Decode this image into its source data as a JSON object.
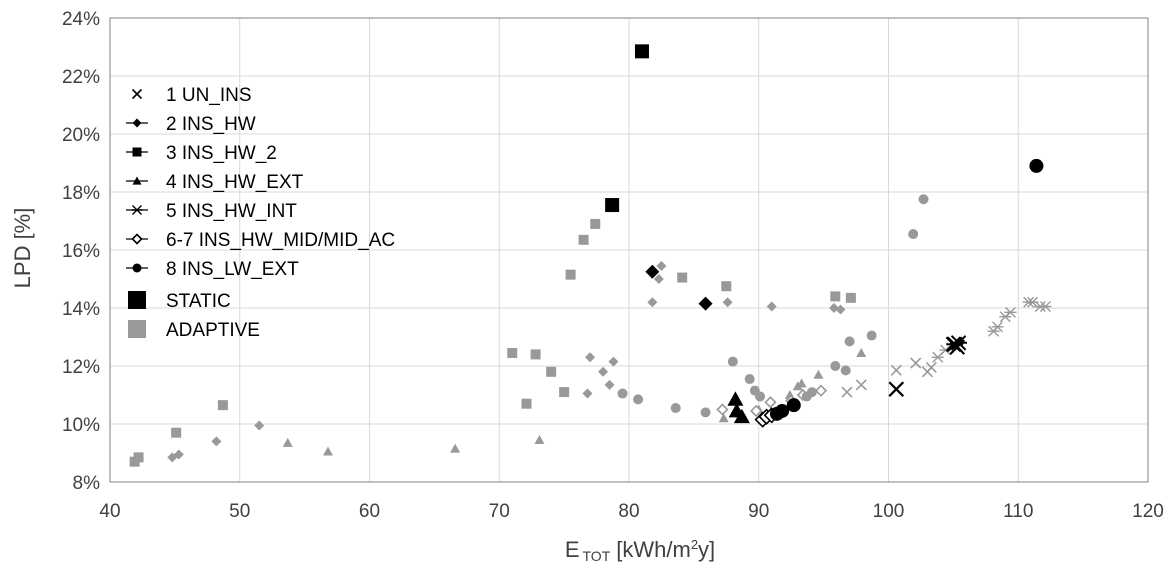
{
  "chart_data": {
    "type": "scatter",
    "title": "",
    "xlabel": "E",
    "xlabel_sub": "TOT",
    "xlabel_unit_before": "[kWh/m",
    "xlabel_unit_sup": "2",
    "xlabel_unit_after": "y]",
    "ylabel": "LPD [%]",
    "xlim": [
      40,
      120
    ],
    "ylim": [
      8,
      24
    ],
    "xticks": [
      40,
      50,
      60,
      70,
      80,
      90,
      100,
      110,
      120
    ],
    "yticks": [
      8,
      10,
      12,
      14,
      16,
      18,
      20,
      22,
      24
    ],
    "ytick_suffix": "%",
    "grid": true,
    "legend_position": "upper-left",
    "colors": {
      "static": "#000000",
      "adaptive": "#999999",
      "grid": "#d9d9d9",
      "axis": "#808080"
    },
    "legend": [
      {
        "label": "1 UN_INS",
        "marker": "x",
        "line": false,
        "color": "#000000"
      },
      {
        "label": "2 INS_HW",
        "marker": "diamond",
        "line": true,
        "color": "#000000"
      },
      {
        "label": "3 INS_HW_2",
        "marker": "square",
        "line": true,
        "color": "#000000"
      },
      {
        "label": "4 INS_HW_EXT",
        "marker": "triangle",
        "line": true,
        "color": "#000000"
      },
      {
        "label": "5 INS_HW_INT",
        "marker": "star",
        "line": true,
        "color": "#000000"
      },
      {
        "label": "6-7 INS_HW_MID/MID_AC",
        "marker": "diamond-open",
        "line": true,
        "color": "#000000"
      },
      {
        "label": "8 INS_LW_EXT",
        "marker": "circle",
        "line": true,
        "color": "#000000"
      },
      {
        "label": "STATIC",
        "marker": "bigsquare",
        "line": false,
        "color": "#000000"
      },
      {
        "label": "ADAPTIVE",
        "marker": "bigsquare",
        "line": false,
        "color": "#999999"
      }
    ],
    "series": [
      {
        "name": "1 UN_INS",
        "marker": "x",
        "color": "#000000",
        "size": 7,
        "points": [
          [
            100.6,
            11.2
          ],
          [
            105.0,
            12.75
          ],
          [
            105.3,
            12.65
          ]
        ]
      },
      {
        "name": "1 UN_INS",
        "marker": "x",
        "color": "#999999",
        "size": 5,
        "points": [
          [
            96.8,
            11.1
          ],
          [
            97.9,
            11.35
          ],
          [
            100.6,
            11.85
          ],
          [
            102.1,
            12.1
          ],
          [
            103.0,
            11.8
          ],
          [
            103.3,
            11.95
          ]
        ]
      },
      {
        "name": "2 INS_HW",
        "marker": "diamond",
        "color": "#000000",
        "size": 7,
        "points": [
          [
            81.8,
            15.25
          ],
          [
            85.9,
            14.15
          ]
        ]
      },
      {
        "name": "2 INS_HW",
        "marker": "diamond",
        "color": "#999999",
        "size": 5,
        "points": [
          [
            44.8,
            8.85
          ],
          [
            45.3,
            8.95
          ],
          [
            48.2,
            9.4
          ],
          [
            51.5,
            9.95
          ],
          [
            76.8,
            11.05
          ],
          [
            77.0,
            12.3
          ],
          [
            78.0,
            11.8
          ],
          [
            78.5,
            11.35
          ],
          [
            78.8,
            12.15
          ],
          [
            81.8,
            14.2
          ],
          [
            82.3,
            15.0
          ],
          [
            82.5,
            15.45
          ],
          [
            87.6,
            14.2
          ],
          [
            91.0,
            14.05
          ],
          [
            95.8,
            14.0
          ],
          [
            96.3,
            13.95
          ]
        ]
      },
      {
        "name": "3 INS_HW_2",
        "marker": "square",
        "color": "#000000",
        "size": 7,
        "points": [
          [
            81.0,
            22.85
          ],
          [
            78.7,
            17.55
          ]
        ]
      },
      {
        "name": "3 INS_HW_2",
        "marker": "square",
        "color": "#999999",
        "size": 5,
        "points": [
          [
            41.9,
            8.7
          ],
          [
            42.2,
            8.85
          ],
          [
            45.1,
            9.7
          ],
          [
            48.7,
            10.65
          ],
          [
            71.0,
            12.45
          ],
          [
            72.1,
            10.7
          ],
          [
            72.8,
            12.4
          ],
          [
            74.0,
            11.8
          ],
          [
            75.0,
            11.1
          ],
          [
            75.5,
            15.15
          ],
          [
            76.5,
            16.35
          ],
          [
            77.4,
            16.9
          ],
          [
            84.1,
            15.05
          ],
          [
            87.5,
            14.75
          ],
          [
            95.9,
            14.4
          ],
          [
            97.1,
            14.35
          ]
        ]
      },
      {
        "name": "4 INS_HW_EXT",
        "marker": "triangle",
        "color": "#000000",
        "size": 8,
        "points": [
          [
            88.2,
            10.85
          ],
          [
            88.3,
            10.45
          ],
          [
            88.7,
            10.25
          ]
        ]
      },
      {
        "name": "4 INS_HW_EXT",
        "marker": "triangle",
        "color": "#999999",
        "size": 5,
        "points": [
          [
            53.7,
            9.35
          ],
          [
            56.8,
            9.05
          ],
          [
            66.6,
            9.15
          ],
          [
            73.1,
            9.45
          ],
          [
            87.3,
            10.2
          ],
          [
            90.0,
            10.5
          ],
          [
            92.4,
            11.0
          ],
          [
            93.0,
            11.3
          ],
          [
            93.3,
            11.4
          ],
          [
            94.6,
            11.7
          ],
          [
            97.9,
            12.45
          ]
        ]
      },
      {
        "name": "5 INS_HW_INT",
        "marker": "star",
        "color": "#000000",
        "size": 7,
        "points": [
          [
            105.1,
            12.75
          ],
          [
            105.4,
            12.8
          ]
        ]
      },
      {
        "name": "5 INS_HW_INT",
        "marker": "star",
        "color": "#999999",
        "size": 5,
        "points": [
          [
            103.8,
            12.3
          ],
          [
            104.4,
            12.55
          ],
          [
            108.1,
            13.2
          ],
          [
            108.4,
            13.35
          ],
          [
            109.0,
            13.7
          ],
          [
            109.4,
            13.85
          ],
          [
            110.8,
            14.2
          ],
          [
            111.1,
            14.2
          ],
          [
            111.7,
            14.05
          ],
          [
            112.1,
            14.05
          ]
        ]
      },
      {
        "name": "6-7 INS_HW_MID/MID_AC",
        "marker": "diamond-open",
        "color": "#000000",
        "size": 7,
        "points": [
          [
            90.3,
            10.15
          ],
          [
            90.6,
            10.25
          ],
          [
            91.0,
            10.3
          ]
        ]
      },
      {
        "name": "6-7 INS_HW_MID/MID_AC",
        "marker": "diamond-open",
        "color": "#999999",
        "size": 5,
        "points": [
          [
            87.2,
            10.5
          ],
          [
            89.8,
            10.45
          ],
          [
            90.9,
            10.75
          ],
          [
            92.5,
            10.8
          ],
          [
            93.4,
            11.0
          ],
          [
            94.8,
            11.15
          ]
        ]
      },
      {
        "name": "8 INS_LW_EXT",
        "marker": "circle",
        "color": "#000000",
        "size": 7,
        "points": [
          [
            91.4,
            10.35
          ],
          [
            91.8,
            10.45
          ],
          [
            92.7,
            10.65
          ],
          [
            111.4,
            18.9
          ]
        ]
      },
      {
        "name": "8 INS_LW_EXT",
        "marker": "circle",
        "color": "#999999",
        "size": 5,
        "points": [
          [
            79.5,
            11.05
          ],
          [
            80.7,
            10.85
          ],
          [
            83.6,
            10.55
          ],
          [
            85.9,
            10.4
          ],
          [
            88.0,
            12.15
          ],
          [
            89.3,
            11.55
          ],
          [
            89.7,
            11.15
          ],
          [
            90.1,
            10.95
          ],
          [
            93.7,
            10.95
          ],
          [
            94.1,
            11.1
          ],
          [
            95.9,
            12.0
          ],
          [
            96.7,
            11.85
          ],
          [
            97.0,
            12.85
          ],
          [
            98.7,
            13.05
          ],
          [
            101.9,
            16.55
          ],
          [
            102.7,
            17.75
          ]
        ]
      }
    ]
  }
}
